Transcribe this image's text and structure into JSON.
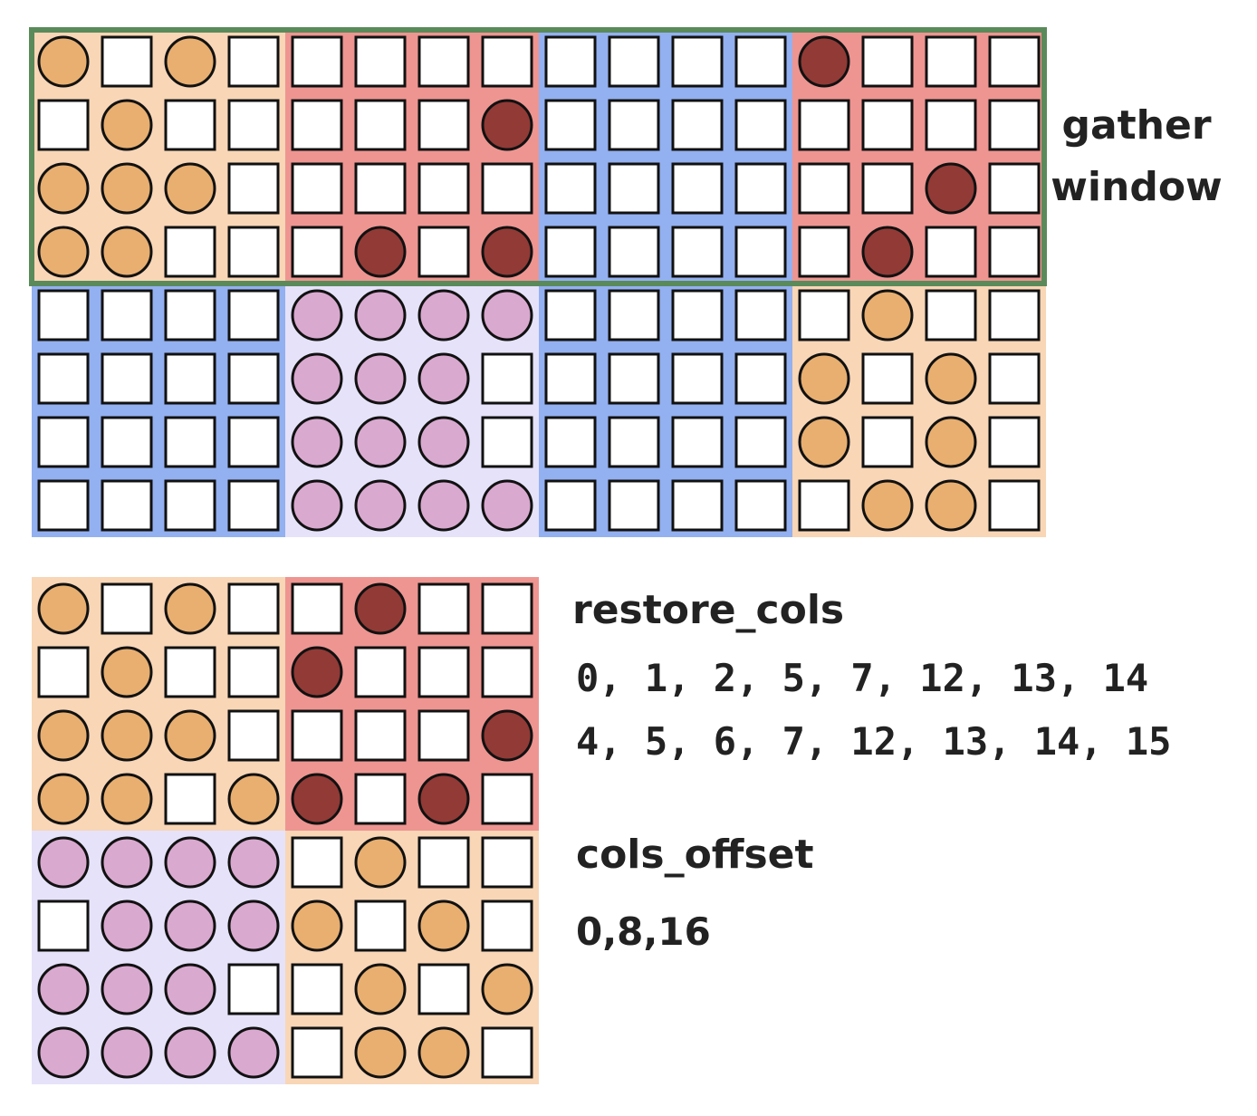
{
  "colors": {
    "orange_bg": "#f8d6b6",
    "red_bg": "#ee9591",
    "blue_bg": "#93b0f0",
    "purple_bg": "#e6e2fa",
    "orange_dot": "#e8af70",
    "red_dot": "#923a36",
    "purple_dot": "#d9a9d0",
    "gather_border": "#5a8a5a"
  },
  "labels": {
    "gather_line1": "gather",
    "gather_line2": "window",
    "restore_cols": "restore_cols",
    "restore_row0": "0, 1, 2, 5, 7, 12, 13, 14",
    "restore_row1": "4, 5, 6, 7, 12, 13, 14, 15",
    "cols_offset": "cols_offset",
    "cols_offset_value": "0,8,16"
  },
  "top_matrix": {
    "rows": [
      "o.o.....,...R...",
      ".o.....R........",
      "ooo.............R.",
      "oo...R.R...R.."
    ],
    "block_colors": [
      [
        "orange",
        "red",
        "blue",
        "red"
      ],
      [
        "blue",
        "purple",
        "blue",
        "orange"
      ]
    ],
    "cells": [
      "o.o.........R...",
      ".o.....R........",
      "ooo...........R.",
      "oo...R.R.....R..",
      "....pppp.....o..",
      "....ppp.....o.o.",
      "....ppp.....o.o.o",
      "....pppp.....oo."
    ]
  },
  "bottom_matrix": {
    "block_colors": [
      [
        "orange",
        "red"
      ],
      [
        "purple",
        "orange"
      ]
    ],
    "cells": [
      "o.o..R..",
      ".o..R...",
      "ooo....R",
      "oo.oR.R.",
      "pppp.o..",
      ".pppo.o.",
      "ppp..o.o",
      "pppp.oo."
    ]
  }
}
